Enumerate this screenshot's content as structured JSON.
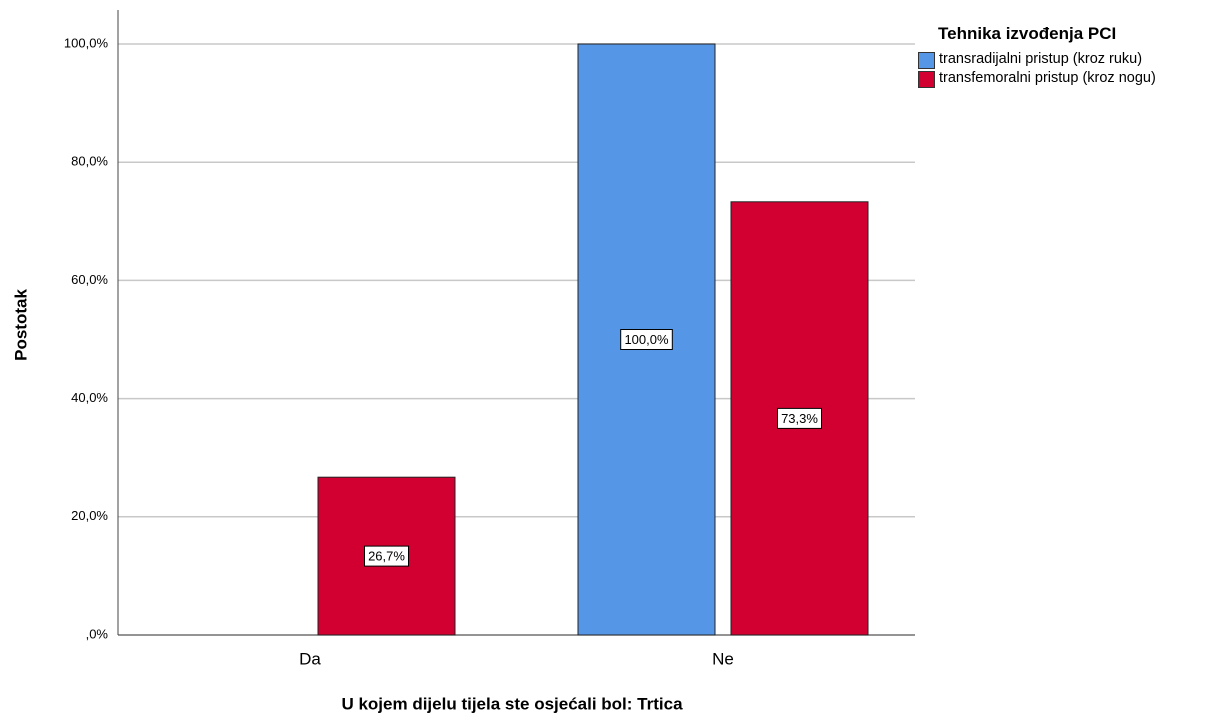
{
  "chart_data": {
    "type": "bar",
    "x_label": "U kojem dijelu tijela ste osjećali bol: Trtica",
    "y_label": "Postotak",
    "legend_title": "Tehnika izvođenja PCI",
    "legend": "right",
    "categories": [
      "Da",
      "Ne"
    ],
    "series": [
      {
        "name": "transradijalni pristup (kroz ruku)",
        "color": "#5596e6",
        "values": [
          0,
          100
        ],
        "value_labels": [
          null,
          "100,0%"
        ]
      },
      {
        "name": "transfemoralni pristup (kroz nogu)",
        "color": "#d20031",
        "values": [
          26.7,
          73.3
        ],
        "value_labels": [
          "26,7%",
          "73,3%"
        ]
      }
    ],
    "ylim": [
      0,
      105
    ],
    "yticks": [
      {
        "value": 0,
        "label": ",0%"
      },
      {
        "value": 20,
        "label": "20,0%"
      },
      {
        "value": 40,
        "label": "40,0%"
      },
      {
        "value": 60,
        "label": "60,0%"
      },
      {
        "value": 80,
        "label": "80,0%"
      },
      {
        "value": 100,
        "label": "100,0%"
      }
    ],
    "grid": true
  }
}
